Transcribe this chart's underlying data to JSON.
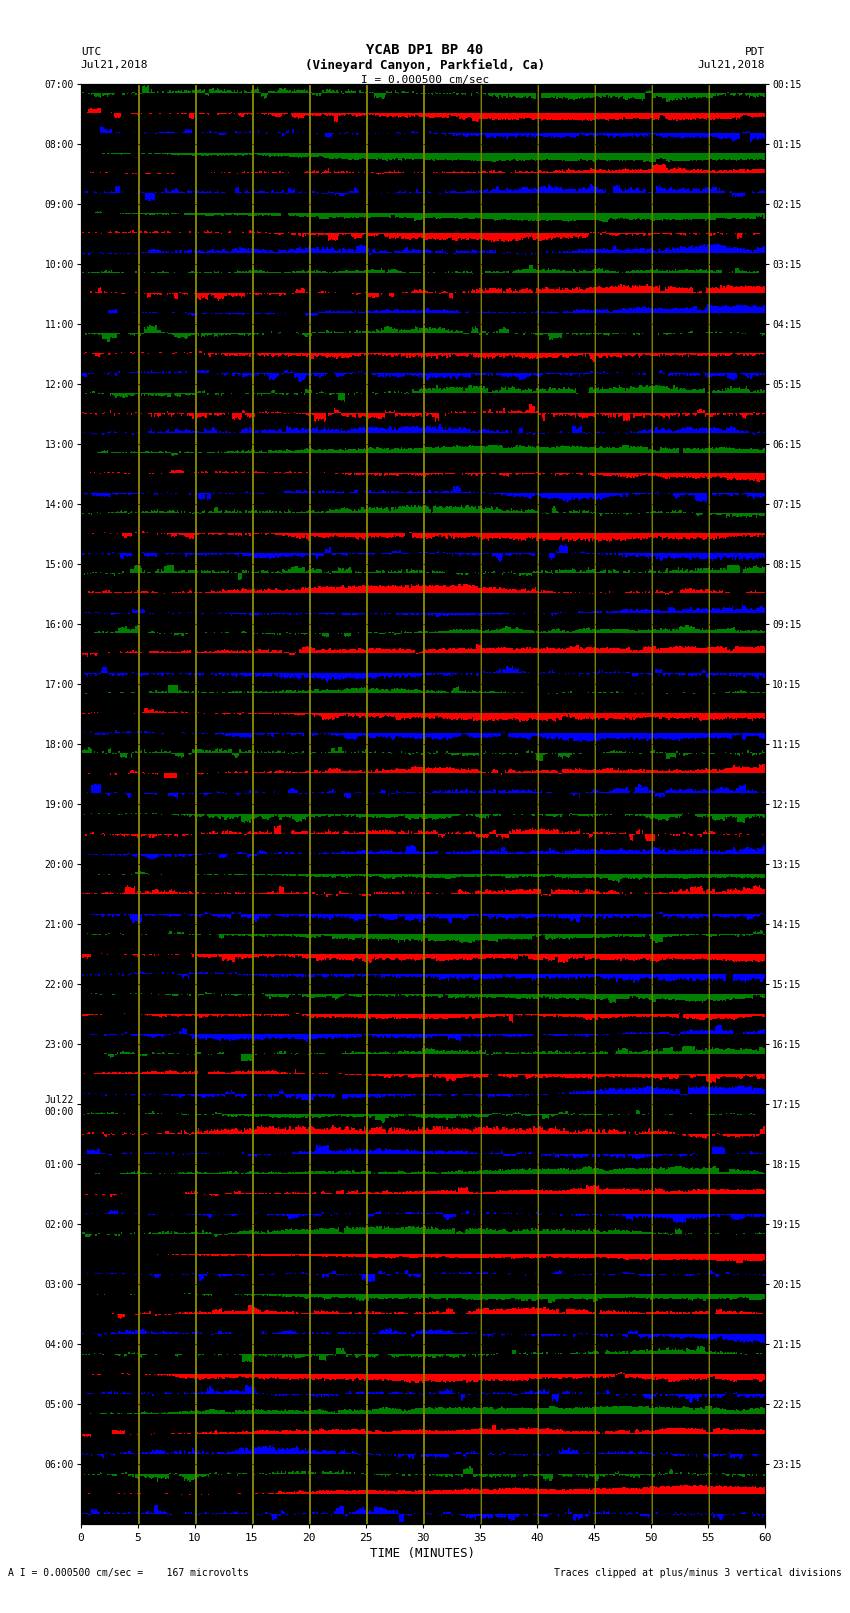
{
  "title_line1": "YCAB DP1 BP 40",
  "title_line2": "(Vineyard Canyon, Parkfield, Ca)",
  "scale_label": "I = 0.000500 cm/sec",
  "left_label": "UTC",
  "right_label": "PDT",
  "left_date": "Jul21,2018",
  "right_date": "Jul21,2018",
  "bottom_label": "TIME (MINUTES)",
  "bottom_note_left": "A I = 0.000500 cm/sec =    167 microvolts",
  "bottom_note_right": "Traces clipped at plus/minus 3 vertical divisions",
  "utc_times": [
    "07:00",
    "08:00",
    "09:00",
    "10:00",
    "11:00",
    "12:00",
    "13:00",
    "14:00",
    "15:00",
    "16:00",
    "17:00",
    "18:00",
    "19:00",
    "20:00",
    "21:00",
    "22:00",
    "23:00",
    "Jul22\n00:00",
    "01:00",
    "02:00",
    "03:00",
    "04:00",
    "05:00",
    "06:00"
  ],
  "pdt_times": [
    "00:15",
    "01:15",
    "02:15",
    "03:15",
    "04:15",
    "05:15",
    "06:15",
    "07:15",
    "08:15",
    "09:15",
    "10:15",
    "11:15",
    "12:15",
    "13:15",
    "14:15",
    "15:15",
    "16:15",
    "17:15",
    "18:15",
    "19:15",
    "20:15",
    "21:15",
    "22:15",
    "23:15"
  ],
  "n_rows": 24,
  "bg_color": "#ffffff",
  "figsize": [
    8.5,
    16.13
  ],
  "dpi": 100
}
